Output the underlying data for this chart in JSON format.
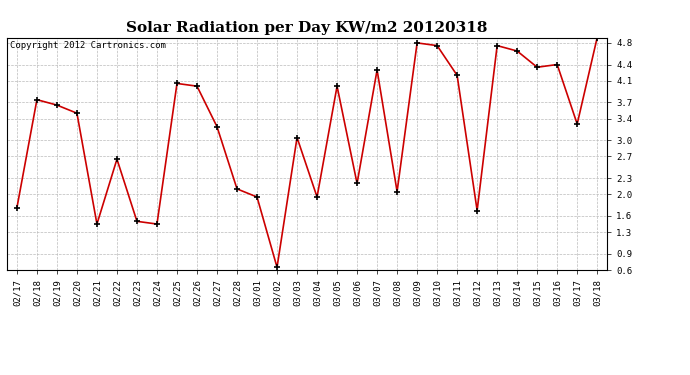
{
  "title": "Solar Radiation per Day KW/m2 20120318",
  "copyright": "Copyright 2012 Cartronics.com",
  "dates": [
    "02/17",
    "02/18",
    "02/19",
    "02/20",
    "02/21",
    "02/22",
    "02/23",
    "02/24",
    "02/25",
    "02/26",
    "02/27",
    "02/28",
    "03/01",
    "03/02",
    "03/03",
    "03/04",
    "03/05",
    "03/06",
    "03/07",
    "03/08",
    "03/09",
    "03/10",
    "03/11",
    "03/12",
    "03/13",
    "03/14",
    "03/15",
    "03/16",
    "03/17",
    "03/18"
  ],
  "values": [
    1.75,
    3.75,
    3.65,
    3.5,
    1.45,
    2.65,
    1.5,
    1.45,
    4.05,
    4.0,
    3.25,
    2.1,
    1.95,
    0.65,
    3.05,
    1.95,
    4.0,
    2.2,
    4.3,
    2.05,
    4.8,
    4.75,
    4.2,
    1.7,
    4.75,
    4.65,
    4.35,
    4.4,
    3.3,
    4.9
  ],
  "line_color": "#cc0000",
  "marker_color": "#000000",
  "bg_color": "#ffffff",
  "plot_bg_color": "#ffffff",
  "grid_color": "#bbbbbb",
  "ylim": [
    0.6,
    4.9
  ],
  "yticks": [
    0.6,
    0.9,
    1.3,
    1.6,
    2.0,
    2.3,
    2.7,
    3.0,
    3.4,
    3.7,
    4.1,
    4.4,
    4.8
  ],
  "title_fontsize": 11,
  "tick_fontsize": 6.5,
  "copyright_fontsize": 6.5
}
